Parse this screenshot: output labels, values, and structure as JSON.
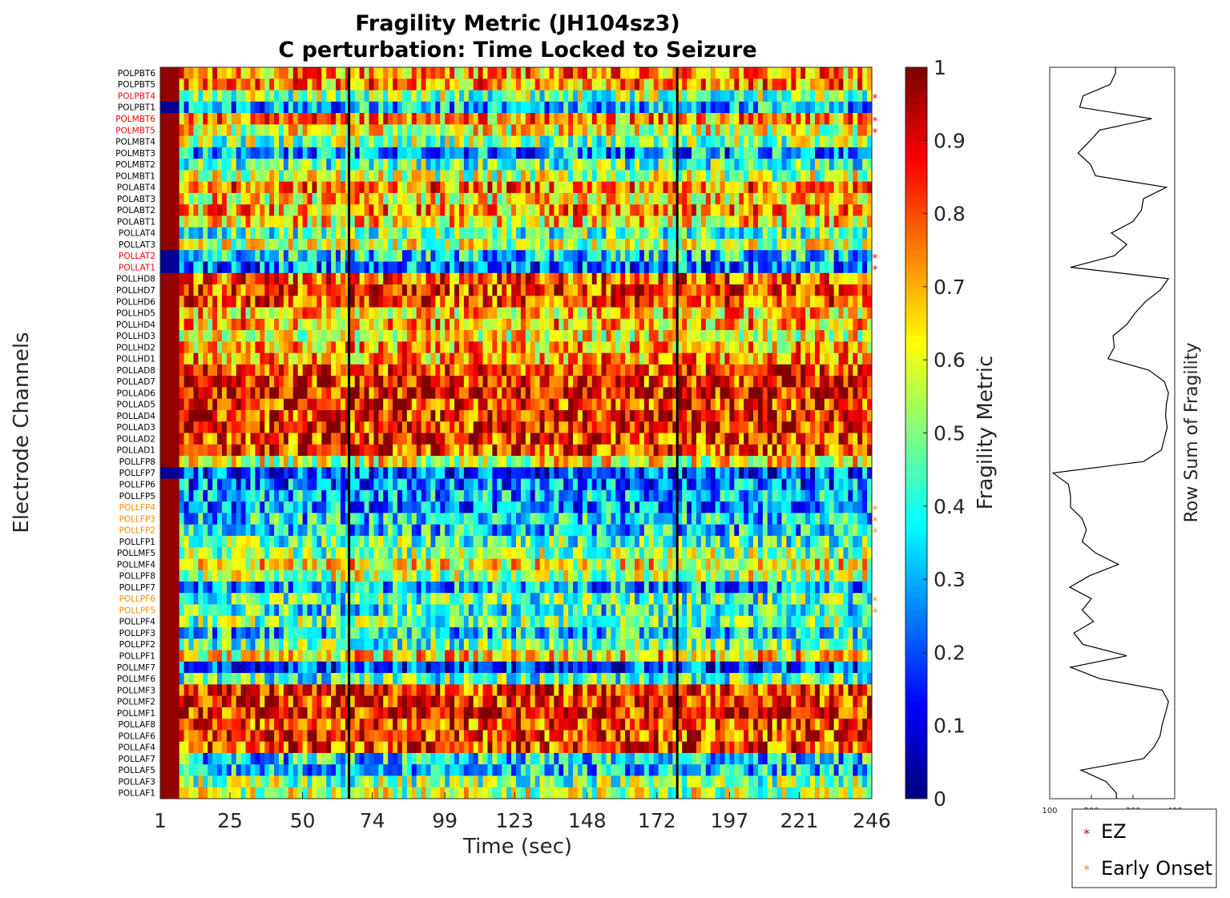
{
  "chart_data": {
    "type": "heatmap",
    "title": "Fragility Metric (JH104sz3)",
    "subtitle": "C perturbation:  Time Locked to Seizure",
    "xlabel": "Time (sec)",
    "ylabel": "Electrode Channels",
    "x_ticks": [
      "1",
      "25",
      "50",
      "74",
      "99",
      "123",
      "148",
      "172",
      "197",
      "221",
      "246"
    ],
    "xlim": [
      1,
      246
    ],
    "vertical_markers": [
      66,
      179
    ],
    "colorbar": {
      "label": "Fragility Metric",
      "colormap": "jet",
      "range": [
        0,
        1
      ],
      "ticks": [
        "0",
        "0.1",
        "0.2",
        "0.3",
        "0.4",
        "0.5",
        "0.6",
        "0.7",
        "0.8",
        "0.9",
        "1"
      ]
    },
    "channels": [
      "POLPBT6",
      "POLPBT5",
      "POLPBT4",
      "POLPBT1",
      "POLMBT6",
      "POLMBT5",
      "POLMBT4",
      "POLMBT3",
      "POLMBT2",
      "POLMBT1",
      "POLABT4",
      "POLABT3",
      "POLABT2",
      "POLABT1",
      "POLLAT4",
      "POLLAT3",
      "POLLAT2",
      "POLLAT1",
      "POLLHD8",
      "POLLHD7",
      "POLLHD6",
      "POLLHD5",
      "POLLHD4",
      "POLLHD3",
      "POLLHD2",
      "POLLHD1",
      "POLLAD8",
      "POLLAD7",
      "POLLAD6",
      "POLLAD5",
      "POLLAD4",
      "POLLAD3",
      "POLLAD2",
      "POLLAD1",
      "POLLFP8",
      "POLLFP7",
      "POLLFP6",
      "POLLFP5",
      "POLLFP4",
      "POLLFP3",
      "POLLFP2",
      "POLLFP1",
      "POLLMF5",
      "POLLMF4",
      "POLLPF8",
      "POLLPF7",
      "POLLPF6",
      "POLLPF5",
      "POLLPF4",
      "POLLPF3",
      "POLLPF2",
      "POLLPF1",
      "POLLMF7",
      "POLLMF6",
      "POLLMF3",
      "POLLMF2",
      "POLLMF1",
      "POLLAF8",
      "POLLAF6",
      "POLLAF4",
      "POLLAF7",
      "POLLAF5",
      "POLLAF3",
      "POLLAF1"
    ],
    "ez_channels": [
      "POLPBT4",
      "POLMBT6",
      "POLMBT5",
      "POLLAT2",
      "POLLAT1"
    ],
    "early_onset_channels": [
      "POLLFP4",
      "POLLFP3",
      "POLLFP2",
      "POLLPF6",
      "POLLPF5"
    ],
    "row_mean_fragility": [
      0.72,
      0.74,
      0.5,
      0.3,
      0.72,
      0.6,
      0.5,
      0.28,
      0.45,
      0.55,
      0.75,
      0.65,
      0.72,
      0.65,
      0.45,
      0.55,
      0.35,
      0.25,
      0.78,
      0.82,
      0.82,
      0.68,
      0.7,
      0.62,
      0.7,
      0.72,
      0.82,
      0.85,
      0.87,
      0.85,
      0.85,
      0.85,
      0.84,
      0.82,
      0.6,
      0.2,
      0.25,
      0.3,
      0.28,
      0.35,
      0.35,
      0.45,
      0.5,
      0.62,
      0.55,
      0.3,
      0.45,
      0.4,
      0.48,
      0.35,
      0.45,
      0.65,
      0.2,
      0.45,
      0.85,
      0.85,
      0.87,
      0.82,
      0.82,
      0.82,
      0.35,
      0.32,
      0.5,
      0.55
    ],
    "row_sum_series": {
      "xlabel": "Row Sum of Fragility",
      "xlim": [
        100,
        400
      ],
      "x_ticks": [
        "100",
        "200",
        "300",
        "400"
      ],
      "values": [
        258,
        245,
        180,
        172,
        345,
        220,
        195,
        168,
        198,
        210,
        380,
        325,
        320,
        300,
        248,
        285,
        255,
        150,
        385,
        365,
        330,
        305,
        285,
        252,
        255,
        240,
        338,
        375,
        385,
        380,
        378,
        382,
        375,
        368,
        325,
        108,
        145,
        150,
        150,
        178,
        188,
        178,
        210,
        265,
        195,
        148,
        200,
        178,
        205,
        158,
        180,
        285,
        150,
        220,
        370,
        385,
        378,
        370,
        365,
        350,
        325,
        175,
        235,
        260
      ]
    },
    "legend": {
      "placement": "bottom-right",
      "entries": [
        {
          "label": "EZ",
          "color": "#cc0000"
        },
        {
          "label": "Early Onset",
          "color": "#e8871e"
        }
      ]
    },
    "colors": {
      "ez": "#ff0000",
      "early_onset": "#ff8c00",
      "normal_label": "#000000",
      "marker_line": "#000000"
    }
  }
}
